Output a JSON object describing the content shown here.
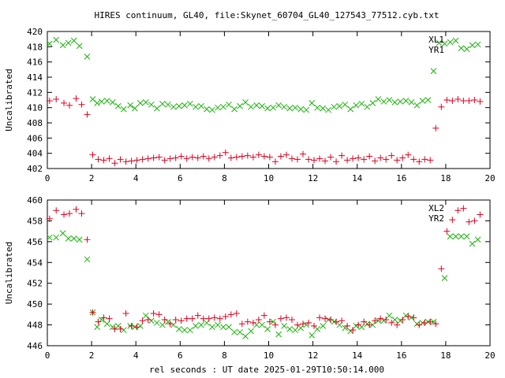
{
  "title": "HIRES continuum, GL40, file:Skynet_60704_GL40_127543_77512.cyb.txt",
  "xlabel": "rel seconds : UT date 2025-01-29T10:50:14.000",
  "colors": {
    "red": "#e0001f",
    "green": "#19b30a"
  },
  "chart_data": [
    {
      "type": "scatter",
      "ylabel": "Uncalibrated",
      "xlim": [
        0,
        20
      ],
      "ylim": [
        402,
        420
      ],
      "xticks": [
        0,
        2,
        4,
        6,
        8,
        10,
        12,
        14,
        16,
        18,
        20
      ],
      "yticks": [
        402,
        404,
        406,
        408,
        410,
        412,
        414,
        416,
        418,
        420
      ],
      "legend_position": "top-right",
      "series": [
        {
          "name": "XL1",
          "marker": "x",
          "color": "#19b30a",
          "x": [
            0.1,
            0.4,
            0.7,
            0.95,
            1.2,
            1.45,
            1.8,
            2.05,
            2.25,
            2.45,
            2.7,
            2.95,
            3.2,
            3.45,
            3.75,
            3.95,
            4.2,
            4.45,
            4.7,
            4.95,
            5.2,
            5.45,
            5.7,
            5.95,
            6.2,
            6.45,
            6.7,
            6.95,
            7.2,
            7.45,
            7.7,
            7.95,
            8.2,
            8.45,
            8.7,
            8.95,
            9.2,
            9.45,
            9.7,
            9.95,
            10.2,
            10.45,
            10.7,
            10.95,
            11.2,
            11.45,
            11.7,
            11.95,
            12.2,
            12.45,
            12.7,
            12.95,
            13.2,
            13.45,
            13.7,
            13.95,
            14.2,
            14.45,
            14.7,
            14.95,
            15.2,
            15.45,
            15.7,
            15.95,
            16.2,
            16.45,
            16.7,
            16.95,
            17.2,
            17.45,
            17.7,
            17.95,
            18.2,
            18.45,
            18.7,
            18.95,
            19.2,
            19.45
          ],
          "y": [
            418.4,
            418.9,
            418.2,
            418.5,
            418.8,
            418.1,
            416.7,
            411.1,
            410.6,
            410.8,
            410.9,
            410.7,
            410.2,
            409.8,
            410.3,
            409.9,
            410.6,
            410.7,
            410.4,
            409.9,
            410.5,
            410.4,
            410.1,
            410.2,
            410.3,
            410.5,
            410.1,
            410.2,
            409.8,
            409.7,
            410.0,
            410.1,
            410.4,
            409.8,
            410.2,
            410.7,
            410.1,
            410.3,
            410.2,
            409.9,
            410.0,
            410.3,
            410.1,
            409.9,
            410.0,
            409.8,
            409.7,
            410.6,
            410.0,
            409.9,
            409.7,
            410.1,
            410.2,
            410.4,
            409.8,
            410.3,
            410.5,
            410.1,
            410.6,
            411.1,
            410.8,
            411.0,
            410.7,
            410.8,
            410.9,
            410.7,
            410.3,
            410.9,
            411.0,
            414.8,
            418.5,
            418.4,
            418.6,
            418.8,
            417.8,
            417.7,
            418.2,
            418.3
          ]
        },
        {
          "name": "YR1",
          "marker": "+",
          "color": "#e0001f",
          "x": [
            0.1,
            0.4,
            0.75,
            1.0,
            1.3,
            1.55,
            1.8,
            2.05,
            2.3,
            2.55,
            2.8,
            3.05,
            3.3,
            3.55,
            3.8,
            4.05,
            4.3,
            4.55,
            4.8,
            5.05,
            5.3,
            5.55,
            5.8,
            6.05,
            6.3,
            6.55,
            6.8,
            7.05,
            7.3,
            7.55,
            7.8,
            8.05,
            8.3,
            8.55,
            8.8,
            9.05,
            9.3,
            9.55,
            9.8,
            10.05,
            10.3,
            10.55,
            10.8,
            11.05,
            11.3,
            11.55,
            11.8,
            12.05,
            12.3,
            12.55,
            12.8,
            13.05,
            13.3,
            13.55,
            13.8,
            14.05,
            14.3,
            14.55,
            14.8,
            15.05,
            15.3,
            15.55,
            15.8,
            16.05,
            16.3,
            16.55,
            16.8,
            17.05,
            17.3,
            17.55,
            17.8,
            18.05,
            18.3,
            18.55,
            18.8,
            19.05,
            19.3,
            19.55
          ],
          "y": [
            410.9,
            411.1,
            410.6,
            410.3,
            411.2,
            410.4,
            409.1,
            403.8,
            403.2,
            403.1,
            403.3,
            402.7,
            403.2,
            402.9,
            403.0,
            403.1,
            403.2,
            403.3,
            403.4,
            403.5,
            403.1,
            403.3,
            403.4,
            403.6,
            403.3,
            403.5,
            403.4,
            403.6,
            403.3,
            403.5,
            403.7,
            404.1,
            403.4,
            403.5,
            403.6,
            403.7,
            403.5,
            403.8,
            403.6,
            403.5,
            402.9,
            403.6,
            403.8,
            403.3,
            403.2,
            403.9,
            403.2,
            403.1,
            403.3,
            403.0,
            403.5,
            402.9,
            403.7,
            403.1,
            403.3,
            403.4,
            403.2,
            403.6,
            403.0,
            403.4,
            403.2,
            403.7,
            403.1,
            403.4,
            403.8,
            403.2,
            402.9,
            403.2,
            403.1,
            407.3,
            410.1,
            411.0,
            410.9,
            411.1,
            410.9,
            410.9,
            411.0,
            410.8
          ]
        }
      ]
    },
    {
      "type": "scatter",
      "ylabel": "Uncalibrated",
      "xlim": [
        0,
        20
      ],
      "ylim": [
        446,
        460
      ],
      "xticks": [
        0,
        2,
        4,
        6,
        8,
        10,
        12,
        14,
        16,
        18,
        20
      ],
      "yticks": [
        446,
        448,
        450,
        452,
        454,
        456,
        458,
        460
      ],
      "legend_position": "top-right",
      "series": [
        {
          "name": "XL2",
          "marker": "x",
          "color": "#19b30a",
          "x": [
            0.1,
            0.4,
            0.7,
            0.95,
            1.2,
            1.45,
            1.8,
            2.05,
            2.25,
            2.45,
            2.7,
            2.95,
            3.2,
            3.45,
            3.75,
            3.95,
            4.2,
            4.45,
            4.7,
            4.95,
            5.2,
            5.45,
            5.7,
            5.95,
            6.2,
            6.45,
            6.7,
            6.95,
            7.2,
            7.45,
            7.7,
            7.95,
            8.2,
            8.45,
            8.7,
            8.95,
            9.2,
            9.45,
            9.7,
            9.95,
            10.2,
            10.45,
            10.7,
            10.95,
            11.2,
            11.45,
            11.7,
            11.95,
            12.2,
            12.45,
            12.7,
            12.95,
            13.2,
            13.45,
            13.7,
            13.95,
            14.2,
            14.45,
            14.7,
            14.95,
            15.2,
            15.45,
            15.7,
            15.95,
            16.2,
            16.45,
            16.7,
            16.95,
            17.2,
            17.45,
            17.95,
            18.2,
            18.45,
            18.7,
            18.95,
            19.2,
            19.45
          ],
          "y": [
            456.4,
            456.4,
            456.8,
            456.3,
            456.3,
            456.2,
            454.3,
            449.2,
            447.8,
            448.5,
            448.1,
            447.8,
            447.9,
            447.5,
            447.9,
            447.8,
            447.9,
            448.9,
            448.4,
            448.2,
            448.0,
            448.3,
            448.0,
            447.6,
            447.5,
            447.5,
            447.9,
            448.0,
            448.2,
            447.8,
            448.0,
            447.8,
            447.8,
            447.3,
            447.3,
            446.9,
            447.4,
            448.0,
            448.0,
            447.6,
            448.3,
            447.1,
            447.9,
            447.6,
            447.5,
            447.7,
            448.0,
            447.0,
            447.6,
            447.9,
            448.5,
            448.3,
            448.0,
            447.7,
            447.4,
            447.9,
            447.8,
            448.1,
            448.0,
            448.4,
            448.4,
            448.9,
            448.5,
            448.4,
            448.9,
            448.7,
            448.1,
            448.2,
            448.3,
            448.3,
            452.5,
            456.5,
            456.5,
            456.5,
            456.5,
            455.8,
            456.2
          ]
        },
        {
          "name": "YR2",
          "marker": "+",
          "color": "#e0001f",
          "x": [
            0.1,
            0.4,
            0.75,
            1.0,
            1.3,
            1.55,
            1.8,
            2.05,
            2.3,
            2.55,
            2.8,
            3.05,
            3.3,
            3.55,
            3.8,
            4.05,
            4.3,
            4.55,
            4.8,
            5.05,
            5.3,
            5.55,
            5.8,
            6.05,
            6.3,
            6.55,
            6.8,
            7.05,
            7.3,
            7.55,
            7.8,
            8.05,
            8.3,
            8.55,
            8.8,
            9.05,
            9.3,
            9.55,
            9.8,
            10.05,
            10.3,
            10.55,
            10.8,
            11.05,
            11.3,
            11.55,
            11.8,
            12.05,
            12.3,
            12.55,
            12.8,
            13.05,
            13.3,
            13.55,
            13.8,
            14.05,
            14.3,
            14.55,
            14.8,
            15.05,
            15.3,
            15.55,
            15.8,
            16.05,
            16.3,
            16.55,
            16.8,
            17.05,
            17.3,
            17.55,
            17.8,
            18.05,
            18.3,
            18.55,
            18.8,
            19.05,
            19.3,
            19.55
          ],
          "y": [
            458.2,
            459.0,
            458.6,
            458.7,
            459.1,
            458.7,
            456.2,
            449.2,
            448.3,
            448.7,
            448.6,
            447.6,
            447.6,
            449.1,
            447.9,
            447.8,
            448.4,
            448.5,
            449.1,
            449.0,
            448.5,
            448.1,
            448.5,
            448.4,
            448.6,
            448.6,
            448.9,
            448.6,
            448.6,
            448.7,
            448.6,
            448.8,
            449.0,
            449.1,
            448.1,
            448.3,
            448.2,
            448.5,
            448.9,
            448.3,
            448.0,
            448.6,
            448.7,
            448.5,
            448.0,
            448.1,
            448.2,
            447.9,
            448.7,
            448.6,
            448.5,
            448.3,
            448.4,
            447.9,
            447.5,
            448.0,
            448.3,
            448.0,
            448.4,
            448.6,
            448.5,
            448.2,
            448.0,
            448.5,
            448.8,
            448.7,
            448.0,
            448.2,
            448.3,
            448.1,
            453.4,
            457.0,
            458.1,
            459.0,
            459.2,
            457.9,
            458.0,
            458.6
          ]
        }
      ]
    }
  ]
}
